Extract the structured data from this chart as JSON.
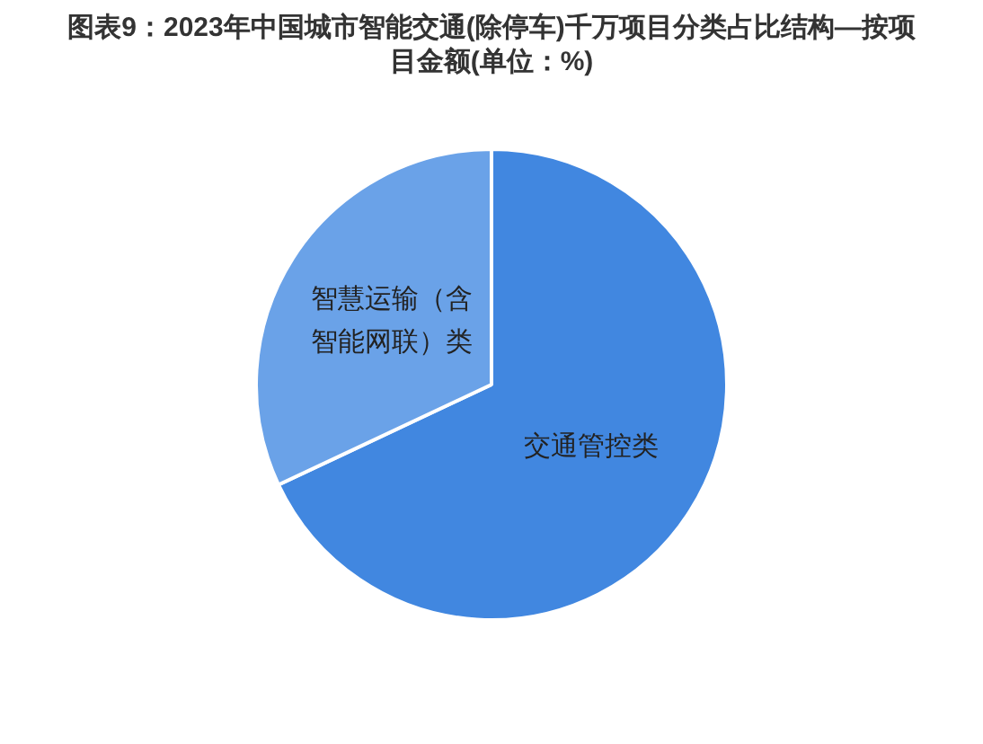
{
  "chart_data": {
    "type": "pie",
    "title": "图表9：2023年中国城市智能交通(除停车)千万项目分类占比结构—按项目金额(单位：%)",
    "categories": [
      "交通管控类",
      "智慧运输（含智能网联）类"
    ],
    "values": [
      68,
      32
    ],
    "colors": [
      "#4187e0",
      "#6aa2e8"
    ],
    "legend": false
  }
}
